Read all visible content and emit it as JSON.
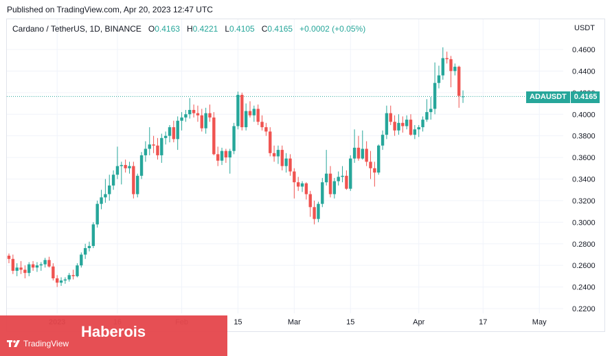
{
  "header": {
    "published": "Published on TradingView.com, Apr 20, 2023 12:47 UTC"
  },
  "symbol": {
    "title": "Cardano / TetherUS, 1D, BINANCE",
    "open_label": "O",
    "open": "0.4163",
    "high_label": "H",
    "high": "0.4221",
    "low_label": "L",
    "low": "0.4105",
    "close_label": "C",
    "close": "0.4165",
    "change": "+0.0002 (+0.05%)"
  },
  "price_axis": {
    "currency": "USDT",
    "ticker": "ADAUSDT",
    "last_price": "0.4165"
  },
  "banner": {
    "text": "Haberois",
    "logo_text": "TradingView"
  },
  "colors": {
    "up": "#26a69a",
    "down": "#ef5350",
    "grid": "#f0f3fa",
    "text": "#131722",
    "banner": "#e5484d"
  },
  "chart_data": {
    "type": "candlestick",
    "title": "Cardano / TetherUS, 1D, BINANCE",
    "ylim": [
      0.22,
      0.47
    ],
    "y_ticks": [
      "0.4600",
      "0.4400",
      "0.4200",
      "0.4000",
      "0.3800",
      "0.3600",
      "0.3400",
      "0.3200",
      "0.3000",
      "0.2800",
      "0.2600",
      "0.2400",
      "0.2200"
    ],
    "x_ticks": [
      {
        "label": "2023",
        "bold": true,
        "index": 12
      },
      {
        "label": "16",
        "bold": false,
        "index": 27
      },
      {
        "label": "Feb",
        "bold": false,
        "index": 43
      },
      {
        "label": "15",
        "bold": false,
        "index": 57
      },
      {
        "label": "Mar",
        "bold": false,
        "index": 71
      },
      {
        "label": "15",
        "bold": false,
        "index": 85
      },
      {
        "label": "Apr",
        "bold": false,
        "index": 102
      },
      {
        "label": "17",
        "bold": false,
        "index": 118
      },
      {
        "label": "May",
        "bold": false,
        "index": 132
      }
    ],
    "grid": true,
    "last_close": 0.4165,
    "candles": [
      [
        0.269,
        0.271,
        0.262,
        0.266
      ],
      [
        0.266,
        0.27,
        0.252,
        0.255
      ],
      [
        0.255,
        0.262,
        0.25,
        0.258
      ],
      [
        0.258,
        0.264,
        0.252,
        0.256
      ],
      [
        0.256,
        0.26,
        0.248,
        0.253
      ],
      [
        0.253,
        0.263,
        0.25,
        0.261
      ],
      [
        0.261,
        0.264,
        0.255,
        0.258
      ],
      [
        0.258,
        0.263,
        0.254,
        0.26
      ],
      [
        0.26,
        0.263,
        0.255,
        0.261
      ],
      [
        0.261,
        0.267,
        0.258,
        0.265
      ],
      [
        0.265,
        0.268,
        0.258,
        0.259
      ],
      [
        0.259,
        0.262,
        0.246,
        0.248
      ],
      [
        0.248,
        0.251,
        0.24,
        0.244
      ],
      [
        0.244,
        0.249,
        0.241,
        0.246
      ],
      [
        0.246,
        0.249,
        0.243,
        0.247
      ],
      [
        0.247,
        0.253,
        0.245,
        0.251
      ],
      [
        0.251,
        0.256,
        0.247,
        0.25
      ],
      [
        0.25,
        0.262,
        0.249,
        0.26
      ],
      [
        0.26,
        0.272,
        0.258,
        0.27
      ],
      [
        0.27,
        0.28,
        0.266,
        0.276
      ],
      [
        0.276,
        0.282,
        0.273,
        0.278
      ],
      [
        0.278,
        0.3,
        0.276,
        0.298
      ],
      [
        0.298,
        0.32,
        0.295,
        0.317
      ],
      [
        0.317,
        0.33,
        0.312,
        0.323
      ],
      [
        0.323,
        0.34,
        0.318,
        0.326
      ],
      [
        0.326,
        0.344,
        0.32,
        0.334
      ],
      [
        0.334,
        0.348,
        0.33,
        0.344
      ],
      [
        0.344,
        0.37,
        0.34,
        0.352
      ],
      [
        0.352,
        0.356,
        0.335,
        0.353
      ],
      [
        0.353,
        0.358,
        0.346,
        0.35
      ],
      [
        0.35,
        0.356,
        0.345,
        0.352
      ],
      [
        0.352,
        0.356,
        0.322,
        0.326
      ],
      [
        0.326,
        0.345,
        0.323,
        0.343
      ],
      [
        0.343,
        0.365,
        0.34,
        0.362
      ],
      [
        0.362,
        0.375,
        0.356,
        0.368
      ],
      [
        0.368,
        0.388,
        0.362,
        0.372
      ],
      [
        0.372,
        0.38,
        0.364,
        0.371
      ],
      [
        0.371,
        0.378,
        0.358,
        0.362
      ],
      [
        0.362,
        0.382,
        0.355,
        0.378
      ],
      [
        0.378,
        0.384,
        0.372,
        0.38
      ],
      [
        0.38,
        0.39,
        0.374,
        0.388
      ],
      [
        0.388,
        0.394,
        0.374,
        0.377
      ],
      [
        0.377,
        0.398,
        0.367,
        0.394
      ],
      [
        0.394,
        0.402,
        0.385,
        0.397
      ],
      [
        0.397,
        0.404,
        0.393,
        0.4
      ],
      [
        0.4,
        0.415,
        0.396,
        0.404
      ],
      [
        0.404,
        0.409,
        0.397,
        0.401
      ],
      [
        0.401,
        0.408,
        0.393,
        0.399
      ],
      [
        0.399,
        0.405,
        0.384,
        0.387
      ],
      [
        0.387,
        0.406,
        0.382,
        0.401
      ],
      [
        0.401,
        0.409,
        0.393,
        0.397
      ],
      [
        0.397,
        0.402,
        0.362,
        0.363
      ],
      [
        0.363,
        0.37,
        0.352,
        0.357
      ],
      [
        0.357,
        0.369,
        0.353,
        0.366
      ],
      [
        0.366,
        0.368,
        0.355,
        0.36
      ],
      [
        0.36,
        0.368,
        0.345,
        0.366
      ],
      [
        0.366,
        0.392,
        0.363,
        0.389
      ],
      [
        0.389,
        0.421,
        0.386,
        0.418
      ],
      [
        0.418,
        0.42,
        0.385,
        0.388
      ],
      [
        0.388,
        0.41,
        0.385,
        0.403
      ],
      [
        0.403,
        0.412,
        0.397,
        0.399
      ],
      [
        0.399,
        0.408,
        0.393,
        0.405
      ],
      [
        0.405,
        0.409,
        0.39,
        0.393
      ],
      [
        0.393,
        0.399,
        0.385,
        0.388
      ],
      [
        0.388,
        0.392,
        0.38,
        0.384
      ],
      [
        0.384,
        0.388,
        0.361,
        0.364
      ],
      [
        0.364,
        0.371,
        0.356,
        0.361
      ],
      [
        0.361,
        0.371,
        0.354,
        0.367
      ],
      [
        0.367,
        0.371,
        0.348,
        0.352
      ],
      [
        0.352,
        0.364,
        0.346,
        0.359
      ],
      [
        0.359,
        0.363,
        0.343,
        0.347
      ],
      [
        0.347,
        0.35,
        0.322,
        0.337
      ],
      [
        0.337,
        0.342,
        0.329,
        0.333
      ],
      [
        0.333,
        0.338,
        0.328,
        0.336
      ],
      [
        0.336,
        0.337,
        0.321,
        0.326
      ],
      [
        0.326,
        0.329,
        0.305,
        0.314
      ],
      [
        0.314,
        0.32,
        0.298,
        0.303
      ],
      [
        0.303,
        0.319,
        0.3,
        0.317
      ],
      [
        0.317,
        0.341,
        0.314,
        0.337
      ],
      [
        0.337,
        0.367,
        0.334,
        0.345
      ],
      [
        0.345,
        0.352,
        0.323,
        0.326
      ],
      [
        0.326,
        0.341,
        0.322,
        0.338
      ],
      [
        0.338,
        0.347,
        0.334,
        0.342
      ],
      [
        0.342,
        0.352,
        0.337,
        0.343
      ],
      [
        0.343,
        0.348,
        0.33,
        0.331
      ],
      [
        0.331,
        0.362,
        0.329,
        0.359
      ],
      [
        0.359,
        0.386,
        0.355,
        0.369
      ],
      [
        0.369,
        0.38,
        0.357,
        0.359
      ],
      [
        0.359,
        0.385,
        0.358,
        0.368
      ],
      [
        0.368,
        0.375,
        0.352,
        0.356
      ],
      [
        0.356,
        0.366,
        0.34,
        0.35
      ],
      [
        0.35,
        0.356,
        0.333,
        0.346
      ],
      [
        0.346,
        0.372,
        0.344,
        0.371
      ],
      [
        0.371,
        0.385,
        0.367,
        0.381
      ],
      [
        0.381,
        0.408,
        0.377,
        0.401
      ],
      [
        0.401,
        0.408,
        0.39,
        0.393
      ],
      [
        0.393,
        0.399,
        0.38,
        0.385
      ],
      [
        0.385,
        0.4,
        0.381,
        0.392
      ],
      [
        0.392,
        0.398,
        0.383,
        0.389
      ],
      [
        0.389,
        0.399,
        0.386,
        0.395
      ],
      [
        0.395,
        0.4,
        0.38,
        0.381
      ],
      [
        0.381,
        0.39,
        0.377,
        0.386
      ],
      [
        0.386,
        0.39,
        0.379,
        0.388
      ],
      [
        0.388,
        0.398,
        0.384,
        0.395
      ],
      [
        0.395,
        0.414,
        0.393,
        0.402
      ],
      [
        0.402,
        0.416,
        0.395,
        0.405
      ],
      [
        0.405,
        0.448,
        0.4,
        0.429
      ],
      [
        0.429,
        0.445,
        0.424,
        0.436
      ],
      [
        0.436,
        0.462,
        0.432,
        0.452
      ],
      [
        0.452,
        0.458,
        0.447,
        0.451
      ],
      [
        0.451,
        0.454,
        0.425,
        0.44
      ],
      [
        0.44,
        0.447,
        0.436,
        0.444
      ],
      [
        0.444,
        0.445,
        0.406,
        0.417
      ],
      [
        0.4163,
        0.4221,
        0.4105,
        0.4165
      ]
    ]
  }
}
